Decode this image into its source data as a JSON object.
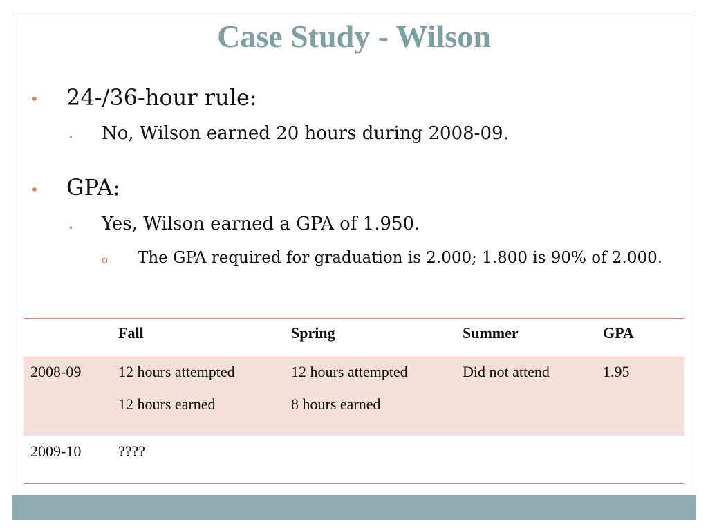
{
  "slide": {
    "title": "Case Study - Wilson",
    "bullets": [
      {
        "text": "24-/36-hour rule:",
        "sub": "No, Wilson earned 20 hours during 2008-09."
      },
      {
        "text": "GPA:",
        "sub": "Yes, Wilson earned a GPA of 1.950.",
        "subsub": "The GPA required for graduation is 2.000; 1.800 is 90% of 2.000."
      }
    ],
    "bullet_glyph": "•",
    "subsub_glyph": "o"
  },
  "table": {
    "headers": [
      "",
      "Fall",
      "Spring",
      "Summer",
      "GPA"
    ],
    "rows": [
      {
        "year": "2008-09",
        "fall": [
          "12 hours attempted",
          "12 hours earned"
        ],
        "spring": [
          "12 hours attempted",
          "8 hours earned"
        ],
        "summer": "Did not attend",
        "gpa": "1.95"
      },
      {
        "year": "2009-10",
        "fall": [
          "????"
        ],
        "spring": [],
        "summer": "",
        "gpa": ""
      }
    ]
  },
  "colors": {
    "title": "#7b9fa2",
    "accent_bullet": "#e07b64",
    "table_rule": "#d98b78",
    "table_band": "#f5dfdb",
    "footer_bar": "#8fadb0"
  }
}
